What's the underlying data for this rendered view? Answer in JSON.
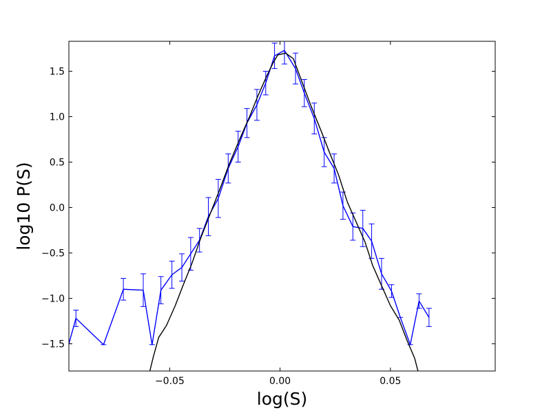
{
  "chart_data": {
    "type": "line",
    "title": "",
    "xlabel": "log(S)",
    "ylabel": "log10 P(S)",
    "xlim": [
      -0.0957,
      0.0975
    ],
    "ylim": [
      -1.8,
      1.83
    ],
    "xticks": [
      -0.05,
      0.0,
      0.05
    ],
    "xtick_labels": [
      "−0.05",
      "0.00",
      "0.05"
    ],
    "yticks": [
      -1.5,
      -1.0,
      -0.5,
      0.0,
      0.5,
      1.0,
      1.5
    ],
    "ytick_labels": [
      "−1.5",
      "−1.0",
      "−0.5",
      "0.0",
      "0.5",
      "1.0",
      "1.5"
    ],
    "grid": false,
    "series": [
      {
        "color": "#0000ff",
        "style": "line-with-errorbars",
        "points": [
          {
            "x": -0.0957,
            "y": -1.5,
            "err": 0.0
          },
          {
            "x": -0.0925,
            "y": -1.22,
            "err": 0.09
          },
          {
            "x": -0.08,
            "y": -1.51,
            "err": 0.0
          },
          {
            "x": -0.071,
            "y": -0.9,
            "err": 0.12
          },
          {
            "x": -0.062,
            "y": -0.91,
            "err": 0.18
          },
          {
            "x": -0.058,
            "y": -1.51,
            "err": 0.0
          },
          {
            "x": -0.054,
            "y": -0.91,
            "err": 0.15
          },
          {
            "x": -0.049,
            "y": -0.74,
            "err": 0.15
          },
          {
            "x": -0.0445,
            "y": -0.66,
            "err": 0.15
          },
          {
            "x": -0.0405,
            "y": -0.51,
            "err": 0.18
          },
          {
            "x": -0.0365,
            "y": -0.36,
            "err": 0.13
          },
          {
            "x": -0.0325,
            "y": -0.1,
            "err": 0.21
          },
          {
            "x": -0.028,
            "y": 0.1,
            "err": 0.21
          },
          {
            "x": -0.0235,
            "y": 0.43,
            "err": 0.16
          },
          {
            "x": -0.019,
            "y": 0.67,
            "err": 0.17
          },
          {
            "x": -0.015,
            "y": 0.93,
            "err": 0.16
          },
          {
            "x": -0.0105,
            "y": 1.13,
            "err": 0.17
          },
          {
            "x": -0.0065,
            "y": 1.37,
            "err": 0.13
          },
          {
            "x": -0.0025,
            "y": 1.67,
            "err": 0.14
          },
          {
            "x": 0.002,
            "y": 1.73,
            "err": 0.15
          },
          {
            "x": 0.007,
            "y": 1.53,
            "err": 0.17
          },
          {
            "x": 0.011,
            "y": 1.26,
            "err": 0.15
          },
          {
            "x": 0.0155,
            "y": 0.98,
            "err": 0.17
          },
          {
            "x": 0.02,
            "y": 0.61,
            "err": 0.16
          },
          {
            "x": 0.0245,
            "y": 0.43,
            "err": 0.16
          },
          {
            "x": 0.0285,
            "y": 0.02,
            "err": 0.15
          },
          {
            "x": 0.033,
            "y": -0.21,
            "err": 0.15
          },
          {
            "x": 0.0375,
            "y": -0.23,
            "err": 0.2
          },
          {
            "x": 0.0415,
            "y": -0.37,
            "err": 0.19
          },
          {
            "x": 0.046,
            "y": -0.73,
            "err": 0.17
          },
          {
            "x": 0.0505,
            "y": -0.92,
            "err": 0.07
          },
          {
            "x": 0.0545,
            "y": -1.21,
            "err": 0.0
          },
          {
            "x": 0.059,
            "y": -1.51,
            "err": 0.0
          },
          {
            "x": 0.063,
            "y": -1.03,
            "err": 0.08
          },
          {
            "x": 0.0675,
            "y": -1.21,
            "err": 0.1
          }
        ]
      },
      {
        "color": "#000000",
        "style": "line",
        "points": [
          {
            "x": -0.059,
            "y": -1.8
          },
          {
            "x": -0.0575,
            "y": -1.65
          },
          {
            "x": -0.055,
            "y": -1.43
          },
          {
            "x": -0.0515,
            "y": -1.3
          },
          {
            "x": -0.0475,
            "y": -1.08
          },
          {
            "x": -0.044,
            "y": -0.86
          },
          {
            "x": -0.04,
            "y": -0.62
          },
          {
            "x": -0.036,
            "y": -0.34
          },
          {
            "x": -0.0315,
            "y": -0.06
          },
          {
            "x": -0.027,
            "y": 0.22
          },
          {
            "x": -0.023,
            "y": 0.48
          },
          {
            "x": -0.0185,
            "y": 0.74
          },
          {
            "x": -0.014,
            "y": 0.99
          },
          {
            "x": -0.01,
            "y": 1.23
          },
          {
            "x": -0.006,
            "y": 1.45
          },
          {
            "x": -0.003,
            "y": 1.6
          },
          {
            "x": -0.001,
            "y": 1.68
          },
          {
            "x": 0.0025,
            "y": 1.7
          },
          {
            "x": 0.006,
            "y": 1.64
          },
          {
            "x": 0.01,
            "y": 1.38
          },
          {
            "x": 0.014,
            "y": 1.12
          },
          {
            "x": 0.0185,
            "y": 0.85
          },
          {
            "x": 0.0225,
            "y": 0.6
          },
          {
            "x": 0.0265,
            "y": 0.36
          },
          {
            "x": 0.0305,
            "y": 0.06
          },
          {
            "x": 0.0345,
            "y": -0.16
          },
          {
            "x": 0.0385,
            "y": -0.38
          },
          {
            "x": 0.042,
            "y": -0.64
          },
          {
            "x": 0.046,
            "y": -0.86
          },
          {
            "x": 0.05,
            "y": -1.08
          },
          {
            "x": 0.054,
            "y": -1.24
          },
          {
            "x": 0.0575,
            "y": -1.46
          },
          {
            "x": 0.061,
            "y": -1.66
          },
          {
            "x": 0.0625,
            "y": -1.8
          }
        ]
      }
    ]
  }
}
